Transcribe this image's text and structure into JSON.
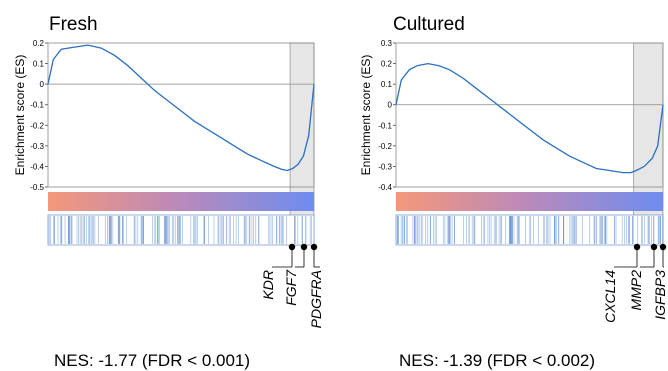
{
  "chart_data": [
    {
      "type": "line",
      "title": "Fresh",
      "ylabel": "Enrichment score (ES)",
      "ylim": [
        -0.5,
        0.2
      ],
      "yticks": [
        "0.2",
        "0.1",
        "0",
        "-0.1",
        "-0.2",
        "-0.3",
        "-0.4",
        "-0.5"
      ],
      "series": [
        {
          "x": [
            0,
            0.02,
            0.05,
            0.1,
            0.15,
            0.2,
            0.25,
            0.3,
            0.35,
            0.4,
            0.45,
            0.5,
            0.55,
            0.6,
            0.65,
            0.7,
            0.75,
            0.8,
            0.85,
            0.88,
            0.9,
            0.92,
            0.94,
            0.96,
            0.98,
            1.0
          ],
          "y": [
            0.0,
            0.12,
            0.17,
            0.18,
            0.19,
            0.175,
            0.14,
            0.09,
            0.03,
            -0.03,
            -0.08,
            -0.13,
            -0.18,
            -0.22,
            -0.26,
            -0.3,
            -0.34,
            -0.37,
            -0.4,
            -0.415,
            -0.42,
            -0.41,
            -0.39,
            -0.35,
            -0.25,
            0.0
          ]
        }
      ],
      "leading_edge_start": 0.91,
      "genes": [
        "KDR",
        "FGF7",
        "PDGFRA"
      ],
      "nes_text": "NES: -1.77 (FDR < 0.001)"
    },
    {
      "type": "line",
      "title": "Cultured",
      "ylabel": "Enrichment score (ES)",
      "ylim": [
        -0.4,
        0.3
      ],
      "yticks": [
        "0.3",
        "0.2",
        "0.1",
        "0",
        "-0.1",
        "-0.2",
        "-0.3",
        "-0.4"
      ],
      "series": [
        {
          "x": [
            0,
            0.02,
            0.05,
            0.08,
            0.12,
            0.16,
            0.2,
            0.25,
            0.3,
            0.35,
            0.4,
            0.45,
            0.5,
            0.55,
            0.6,
            0.65,
            0.7,
            0.75,
            0.8,
            0.85,
            0.88,
            0.9,
            0.93,
            0.96,
            0.98,
            1.0
          ],
          "y": [
            0.0,
            0.12,
            0.17,
            0.19,
            0.2,
            0.19,
            0.17,
            0.13,
            0.08,
            0.03,
            -0.02,
            -0.07,
            -0.12,
            -0.17,
            -0.21,
            -0.25,
            -0.28,
            -0.31,
            -0.32,
            -0.33,
            -0.33,
            -0.32,
            -0.3,
            -0.26,
            -0.2,
            0.0
          ]
        }
      ],
      "leading_edge_start": 0.89,
      "genes": [
        "CXCL14",
        "MMP2",
        "IGFBP3"
      ],
      "nes_text": "NES: -1.39 (FDR < 0.002)"
    }
  ],
  "colors": {
    "curve": "#2a6fc0",
    "gradient_start": "#f4987a",
    "gradient_mid": "#c08ab5",
    "gradient_end": "#6e8cf0",
    "barcode": "#5d8fd0",
    "shade": "#e6e6e6"
  }
}
